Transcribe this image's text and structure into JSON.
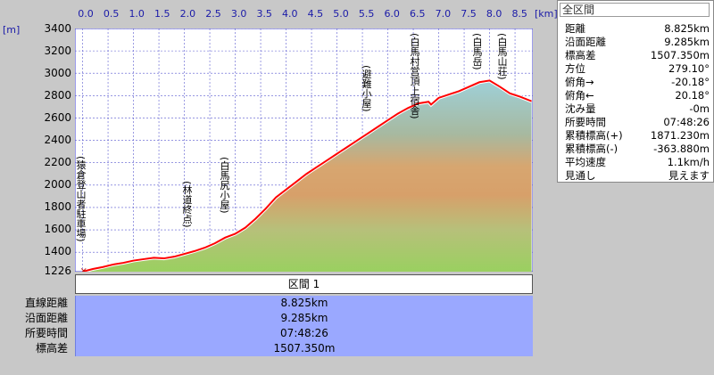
{
  "units": {
    "y": "[m]",
    "x": "[km]"
  },
  "x_ticks": [
    "0.0",
    "0.5",
    "1.0",
    "1.5",
    "2.0",
    "2.5",
    "3.0",
    "3.5",
    "4.0",
    "4.5",
    "5.0",
    "5.5",
    "6.0",
    "6.5",
    "7.0",
    "7.5",
    "8.0",
    "8.5"
  ],
  "y_ticks": [
    "3400",
    "3200",
    "3000",
    "2800",
    "2600",
    "2400",
    "2200",
    "2000",
    "1800",
    "1600",
    "1400",
    "1226"
  ],
  "markers": [
    {
      "label": "(猿倉登山者駐車場)"
    },
    {
      "label": "(林道終点)"
    },
    {
      "label": "(白馬尻小屋)"
    },
    {
      "label": "(避難小屋)"
    },
    {
      "label": "(白馬村営頂上宿舎)"
    },
    {
      "label": "(白馬岳)"
    },
    {
      "label": "(白馬山荘)"
    }
  ],
  "section": {
    "label": "区間 1"
  },
  "stats": [
    {
      "label": "直線距離",
      "value": "8.825km"
    },
    {
      "label": "沿面距離",
      "value": "9.285km"
    },
    {
      "label": "所要時間",
      "value": "07:48:26"
    },
    {
      "label": "標高差",
      "value": "1507.350m"
    }
  ],
  "panel": {
    "title": "全区間",
    "rows": [
      {
        "k": "距離",
        "v": "8.825km"
      },
      {
        "k": "沿面距離",
        "v": "9.285km"
      },
      {
        "k": "標高差",
        "v": "1507.350m"
      },
      {
        "k": "方位",
        "v": "279.10°"
      },
      {
        "k": "俯角→",
        "v": "-20.18°"
      },
      {
        "k": "俯角←",
        "v": "20.18°"
      },
      {
        "k": "沈み量",
        "v": "-0m"
      },
      {
        "k": "所要時間",
        "v": "07:48:26"
      },
      {
        "k": "累積標高(+)",
        "v": "1871.230m"
      },
      {
        "k": "累積標高(-)",
        "v": "-363.880m"
      },
      {
        "k": "平均速度",
        "v": "1.1km/h"
      },
      {
        "k": "見通し",
        "v": "見えます"
      }
    ]
  },
  "chart_data": {
    "type": "area",
    "xlabel": "[km]",
    "ylabel": "[m]",
    "xlim": [
      -0.15,
      8.85
    ],
    "ylim": [
      1226,
      3400
    ],
    "x": [
      0.0,
      0.2,
      0.4,
      0.6,
      0.8,
      1.0,
      1.2,
      1.4,
      1.6,
      1.8,
      2.0,
      2.2,
      2.4,
      2.6,
      2.8,
      3.0,
      3.2,
      3.4,
      3.6,
      3.8,
      4.0,
      4.2,
      4.4,
      4.6,
      4.8,
      5.0,
      5.2,
      5.4,
      5.6,
      5.8,
      6.0,
      6.2,
      6.4,
      6.6,
      6.8,
      6.85,
      7.0,
      7.2,
      7.4,
      7.6,
      7.8,
      8.0,
      8.2,
      8.4,
      8.6,
      8.825
    ],
    "y": [
      1226,
      1250,
      1268,
      1290,
      1305,
      1325,
      1338,
      1350,
      1345,
      1360,
      1385,
      1410,
      1440,
      1480,
      1530,
      1565,
      1620,
      1700,
      1790,
      1890,
      1960,
      2030,
      2100,
      2160,
      2220,
      2280,
      2340,
      2400,
      2460,
      2520,
      2580,
      2640,
      2690,
      2730,
      2745,
      2720,
      2780,
      2810,
      2840,
      2880,
      2920,
      2935,
      2880,
      2820,
      2790,
      2750
    ],
    "colors": {
      "line": "#ff0000",
      "grid_bg": "#fff",
      "grid_line": "#5a5ad0"
    }
  }
}
